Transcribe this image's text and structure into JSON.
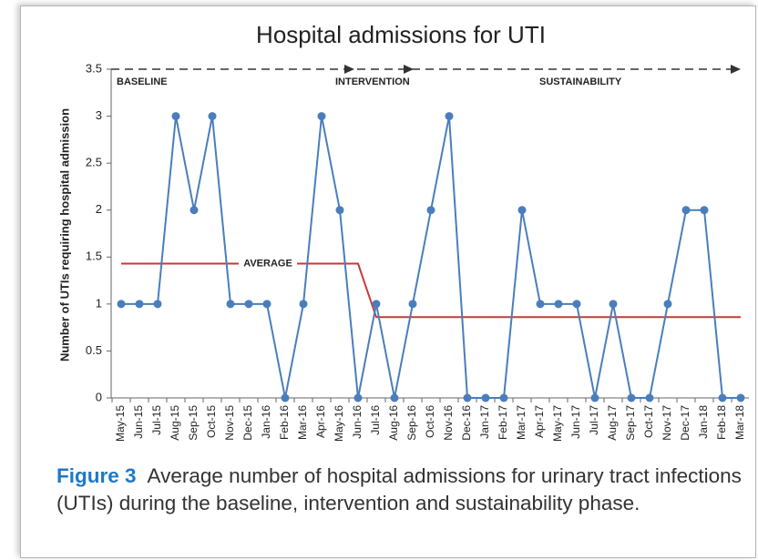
{
  "chart_data": {
    "type": "line",
    "title": "Hospital admissions for UTI",
    "y_label": "Number of UTIs requiring hospital admission",
    "categories": [
      "May-15",
      "Jun-15",
      "Jul-15",
      "Aug-15",
      "Sep-15",
      "Oct-15",
      "Nov-15",
      "Dec-15",
      "Jan-16",
      "Feb-16",
      "Mar-16",
      "Apr-16",
      "May-16",
      "Jun-16",
      "Jul-16",
      "Aug-16",
      "Sep-16",
      "Oct-16",
      "Nov-16",
      "Dec-16",
      "Jan-17",
      "Feb-17",
      "Mar-17",
      "Apr-17",
      "May-17",
      "Jun-17",
      "Jul-17",
      "Aug-17",
      "Sep-17",
      "Oct-17",
      "Nov-17",
      "Dec-17",
      "Jan-18",
      "Feb-18",
      "Mar-18"
    ],
    "series": [
      {
        "color": "#4a7ebb",
        "markers": true,
        "values": [
          1,
          1,
          1,
          3,
          2,
          3,
          1,
          1,
          1,
          0,
          1,
          3,
          2,
          0,
          1,
          0,
          1,
          2,
          3,
          0,
          0,
          0,
          2,
          1,
          1,
          1,
          0,
          1,
          0,
          0,
          1,
          2,
          2,
          0,
          0
        ]
      },
      {
        "name": "AVERAGE",
        "color": "#c63a3a",
        "markers": false,
        "values": [
          1.43,
          1.43,
          1.43,
          1.43,
          1.43,
          1.43,
          1.43,
          1.43,
          1.43,
          1.43,
          1.43,
          1.43,
          1.43,
          1.43,
          0.86,
          0.86,
          0.86,
          0.86,
          0.86,
          0.86,
          0.86,
          0.86,
          0.86,
          0.86,
          0.86,
          0.86,
          0.86,
          0.86,
          0.86,
          0.86,
          0.86,
          0.86,
          0.86,
          0.86,
          0.86
        ]
      }
    ],
    "phases": [
      "BASELINE",
      "INTERVENTION",
      "SUSTAINABILITY"
    ],
    "ylim": [
      0,
      3.5
    ],
    "yticks": [
      0,
      0.5,
      1,
      1.5,
      2,
      2.5,
      3,
      3.5
    ],
    "grid": false
  },
  "caption": {
    "label": "Figure 3",
    "text": "Average number of hospital admissions for urinary tract infections (UTIs) during the baseline, intervention and sustainability phase."
  }
}
